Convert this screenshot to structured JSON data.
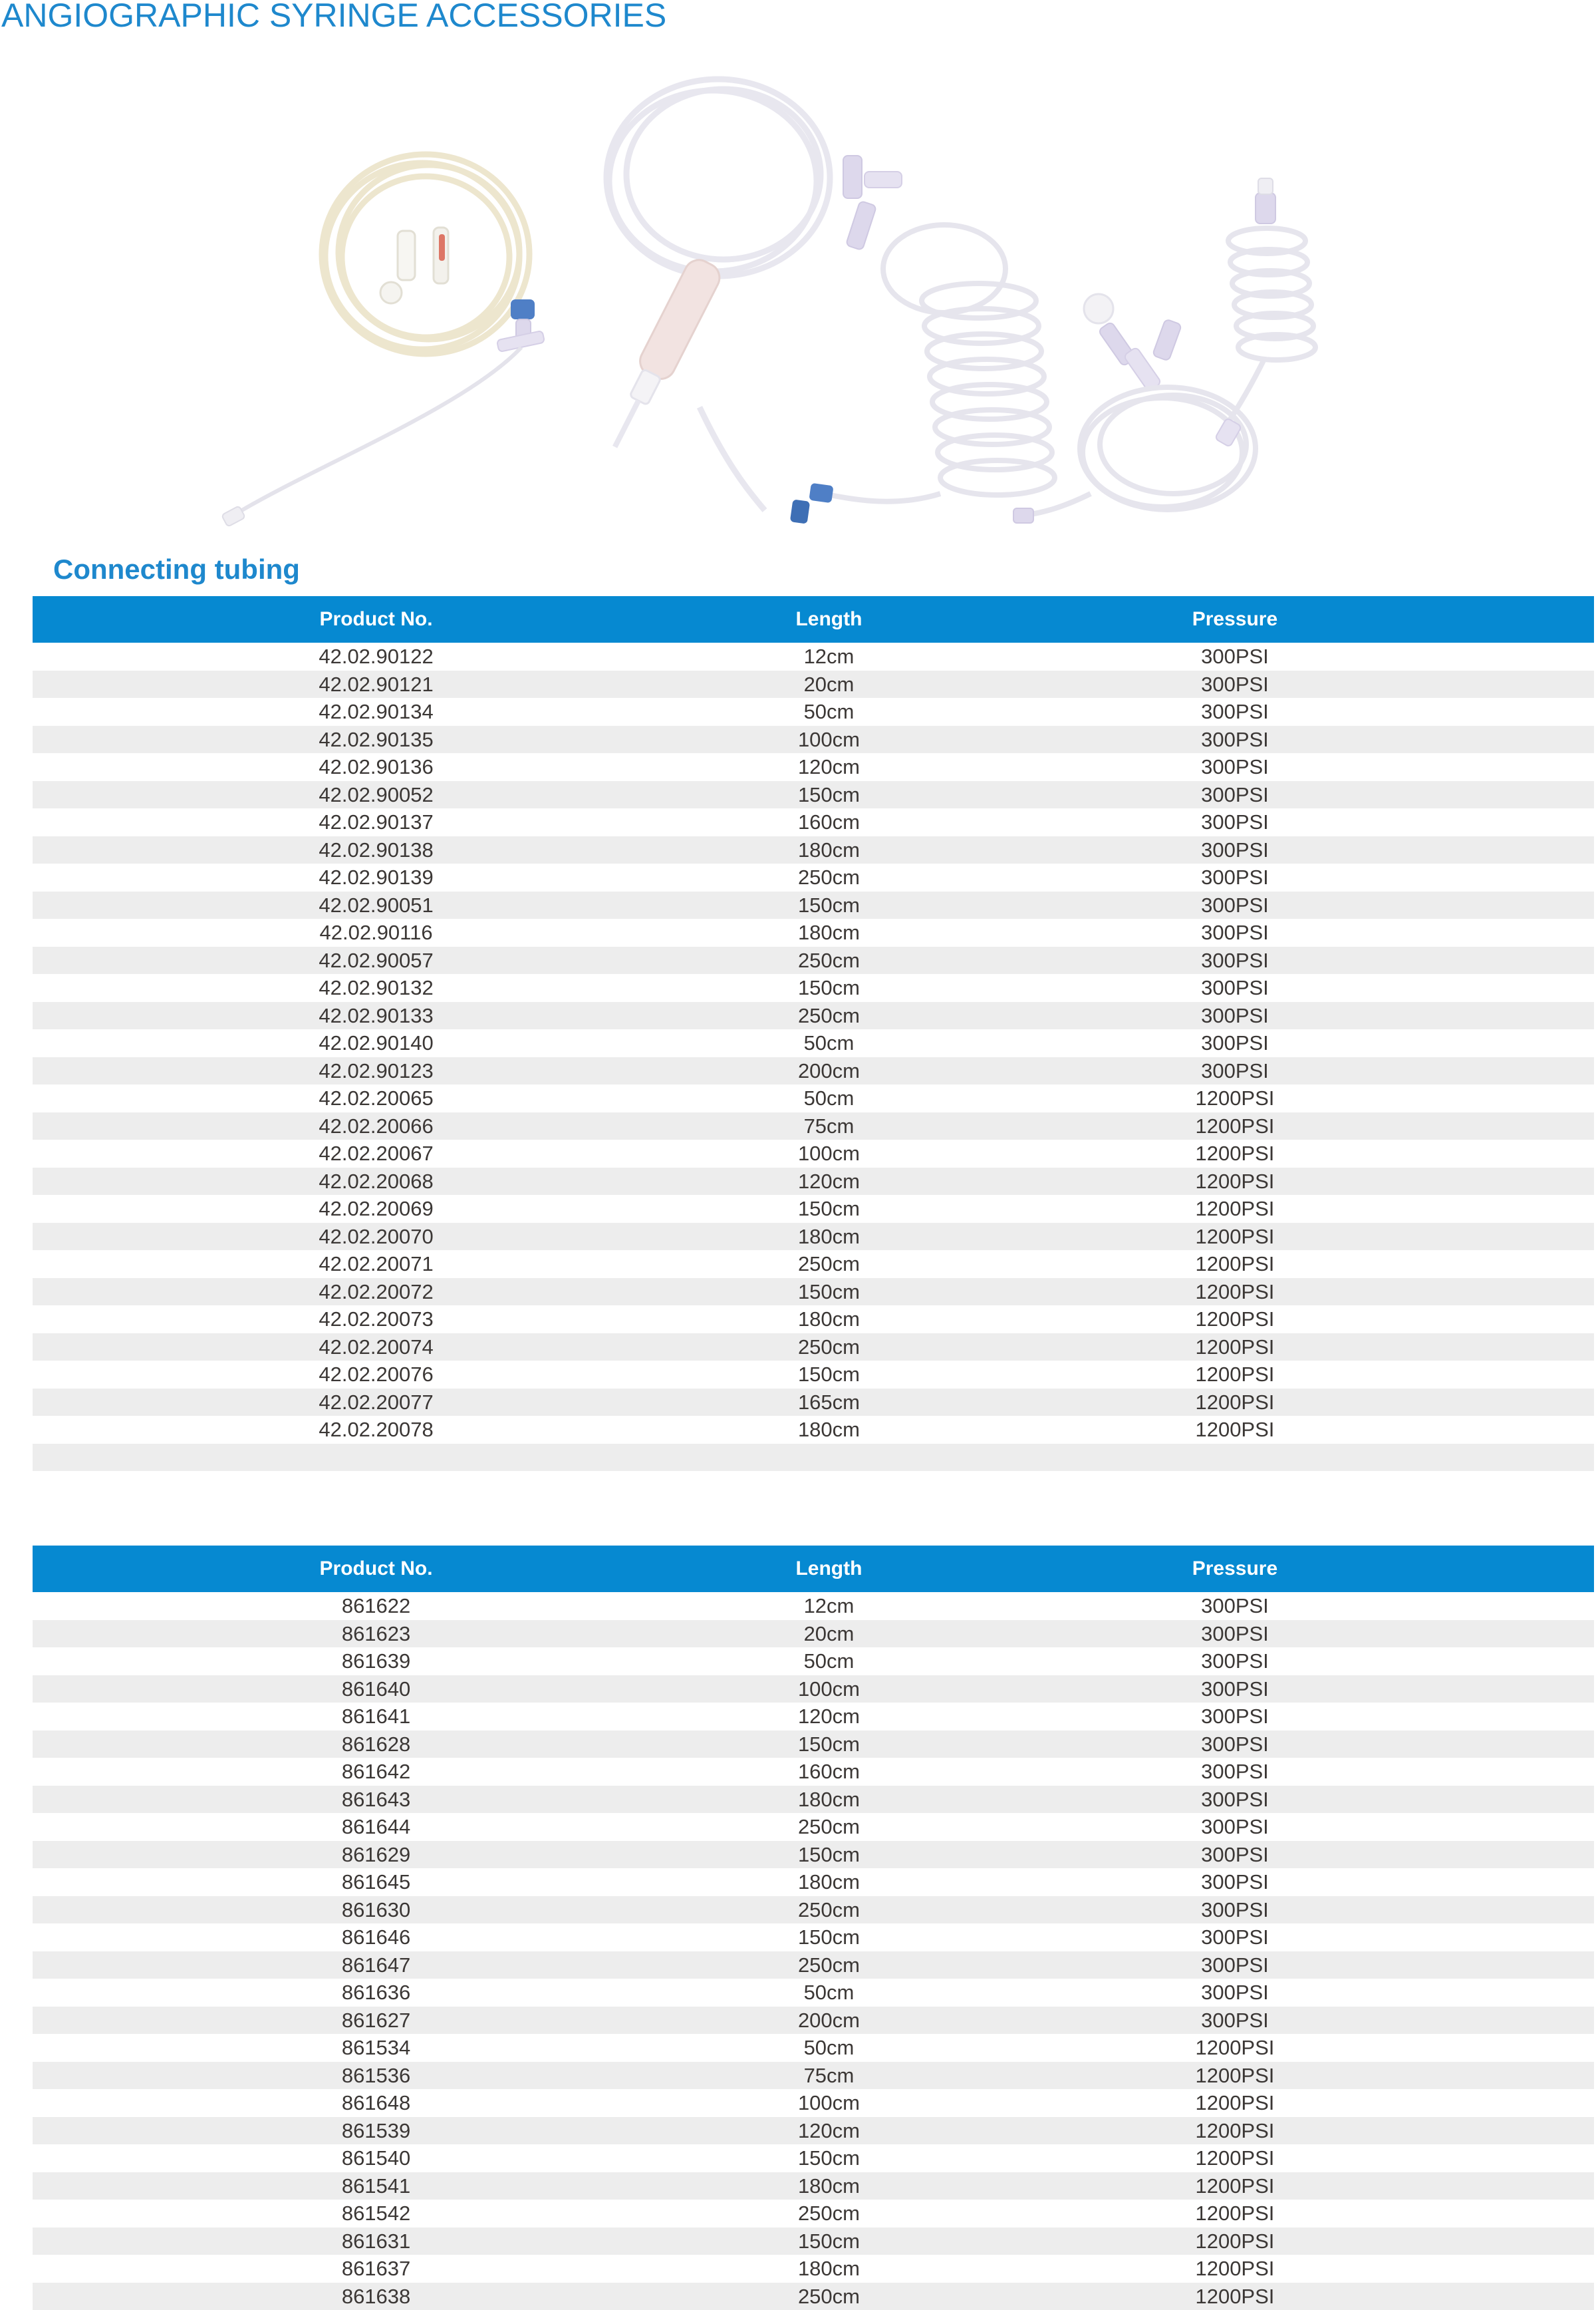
{
  "page": {
    "title": "ANGIOGRAPHIC SYRINGE ACCESSORIES",
    "section_heading": "Connecting tubing"
  },
  "colors": {
    "title_blue": "#1E88CD",
    "table_header_blue": "#0689D1",
    "row_stripe_gray": "#EDEDED",
    "body_text": "#3B3735"
  },
  "photo": {
    "name": "angiographic-tubing-products-photo",
    "description": "assorted transparent connecting tubes, coils, stopcocks and IV set"
  },
  "table1": {
    "columns": [
      "Product No.",
      "Length",
      "Pressure"
    ],
    "trailing_empty_row": true,
    "rows": [
      [
        "42.02.90122",
        "12cm",
        "300PSI"
      ],
      [
        "42.02.90121",
        "20cm",
        "300PSI"
      ],
      [
        "42.02.90134",
        "50cm",
        "300PSI"
      ],
      [
        "42.02.90135",
        "100cm",
        "300PSI"
      ],
      [
        "42.02.90136",
        "120cm",
        "300PSI"
      ],
      [
        "42.02.90052",
        "150cm",
        "300PSI"
      ],
      [
        "42.02.90137",
        "160cm",
        "300PSI"
      ],
      [
        "42.02.90138",
        "180cm",
        "300PSI"
      ],
      [
        "42.02.90139",
        "250cm",
        "300PSI"
      ],
      [
        "42.02.90051",
        "150cm",
        "300PSI"
      ],
      [
        "42.02.90116",
        "180cm",
        "300PSI"
      ],
      [
        "42.02.90057",
        "250cm",
        "300PSI"
      ],
      [
        "42.02.90132",
        "150cm",
        "300PSI"
      ],
      [
        "42.02.90133",
        "250cm",
        "300PSI"
      ],
      [
        "42.02.90140",
        "50cm",
        "300PSI"
      ],
      [
        "42.02.90123",
        "200cm",
        "300PSI"
      ],
      [
        "42.02.20065",
        "50cm",
        "1200PSI"
      ],
      [
        "42.02.20066",
        "75cm",
        "1200PSI"
      ],
      [
        "42.02.20067",
        "100cm",
        "1200PSI"
      ],
      [
        "42.02.20068",
        "120cm",
        "1200PSI"
      ],
      [
        "42.02.20069",
        "150cm",
        "1200PSI"
      ],
      [
        "42.02.20070",
        "180cm",
        "1200PSI"
      ],
      [
        "42.02.20071",
        "250cm",
        "1200PSI"
      ],
      [
        "42.02.20072",
        "150cm",
        "1200PSI"
      ],
      [
        "42.02.20073",
        "180cm",
        "1200PSI"
      ],
      [
        "42.02.20074",
        "250cm",
        "1200PSI"
      ],
      [
        "42.02.20076",
        "150cm",
        "1200PSI"
      ],
      [
        "42.02.20077",
        "165cm",
        "1200PSI"
      ],
      [
        "42.02.20078",
        "180cm",
        "1200PSI"
      ]
    ]
  },
  "table2": {
    "columns": [
      "Product No.",
      "Length",
      "Pressure"
    ],
    "trailing_empty_row": false,
    "rows": [
      [
        "861622",
        "12cm",
        "300PSI"
      ],
      [
        "861623",
        "20cm",
        "300PSI"
      ],
      [
        "861639",
        "50cm",
        "300PSI"
      ],
      [
        "861640",
        "100cm",
        "300PSI"
      ],
      [
        "861641",
        "120cm",
        "300PSI"
      ],
      [
        "861628",
        "150cm",
        "300PSI"
      ],
      [
        "861642",
        "160cm",
        "300PSI"
      ],
      [
        "861643",
        "180cm",
        "300PSI"
      ],
      [
        "861644",
        "250cm",
        "300PSI"
      ],
      [
        "861629",
        "150cm",
        "300PSI"
      ],
      [
        "861645",
        "180cm",
        "300PSI"
      ],
      [
        "861630",
        "250cm",
        "300PSI"
      ],
      [
        "861646",
        "150cm",
        "300PSI"
      ],
      [
        "861647",
        "250cm",
        "300PSI"
      ],
      [
        "861636",
        "50cm",
        "300PSI"
      ],
      [
        "861627",
        "200cm",
        "300PSI"
      ],
      [
        "861534",
        "50cm",
        "1200PSI"
      ],
      [
        "861536",
        "75cm",
        "1200PSI"
      ],
      [
        "861648",
        "100cm",
        "1200PSI"
      ],
      [
        "861539",
        "120cm",
        "1200PSI"
      ],
      [
        "861540",
        "150cm",
        "1200PSI"
      ],
      [
        "861541",
        "180cm",
        "1200PSI"
      ],
      [
        "861542",
        "250cm",
        "1200PSI"
      ],
      [
        "861631",
        "150cm",
        "1200PSI"
      ],
      [
        "861637",
        "180cm",
        "1200PSI"
      ],
      [
        "861638",
        "250cm",
        "1200PSI"
      ]
    ]
  }
}
